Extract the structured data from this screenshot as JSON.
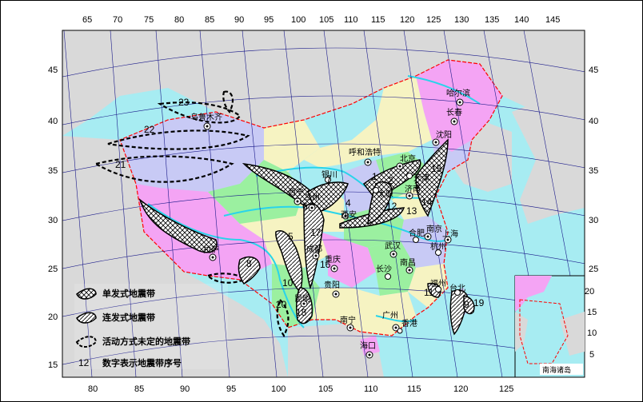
{
  "top_ticks": [
    "65",
    "70",
    "75",
    "80",
    "85",
    "90",
    "95",
    "100",
    "105",
    "110",
    "115",
    "120",
    "125",
    "130",
    "135",
    "140",
    "145"
  ],
  "bottom_ticks": [
    "80",
    "85",
    "90",
    "95",
    "100",
    "105",
    "110",
    "115",
    "120",
    "125"
  ],
  "left_ticks": [
    "45",
    "40",
    "35",
    "30",
    "25",
    "20",
    "15"
  ],
  "right_ticks": [
    "45",
    "40",
    "35",
    "30",
    "25"
  ],
  "inset_ticks": [
    "20",
    "15",
    "10",
    "5"
  ],
  "inset_label": "南海诸岛",
  "cities": [
    "哈尔滨",
    "长春",
    "沈阳",
    "呼和浩特",
    "北京",
    "天津",
    "银川",
    "兰州",
    "西宁",
    "西安",
    "太原",
    "济南",
    "南京",
    "合肥",
    "上海",
    "杭州",
    "武汉",
    "南昌",
    "长沙",
    "福州",
    "台北",
    "拉萨",
    "成都",
    "重庆",
    "贵阳",
    "昆明",
    "南宁",
    "广州",
    "香港",
    "海口",
    "乌鲁木齐"
  ],
  "zone_numbers": [
    "23",
    "22",
    "21",
    "5",
    "4",
    "6",
    "7",
    "8",
    "9",
    "10",
    "11",
    "12",
    "13",
    "14",
    "15",
    "16",
    "17",
    "18",
    "19",
    "20",
    "1",
    "2",
    "3"
  ],
  "legend": {
    "single": "单发式地震带",
    "continuous": "连发式地震带",
    "undetermined": "活动方式未定的地震带",
    "number_sample": "12",
    "number": "数字表示地震带序号"
  },
  "colors": {
    "sea": "#a7ecf2",
    "land_foreign": "#d9d9d9",
    "pink": "#f4a4f4",
    "lavender": "#c8caf5",
    "cream": "#f6f3c2",
    "green": "#9bf0a0",
    "river": "#29d4ea",
    "border": "#ff0000"
  }
}
